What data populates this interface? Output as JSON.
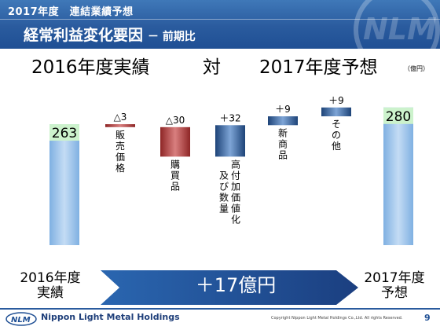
{
  "header": {
    "topline": "2017年度　連結業績予想",
    "title": "経常利益変化要因",
    "subtitle": "－ 前期比"
  },
  "comparison": {
    "left": "2016年度実績",
    "middle": "対",
    "right": "2017年度予想"
  },
  "unit": "（億円）",
  "chart_data": {
    "type": "bar",
    "subtype": "waterfall",
    "categories": [
      "2016年度実績",
      "販売価格",
      "購買品",
      "高付加価値化及び数量",
      "新商品",
      "その他",
      "2017年度予想"
    ],
    "value_labels": [
      "263",
      "△3",
      "△30",
      "＋32",
      "＋9",
      "＋9",
      "280"
    ],
    "start_value": 263,
    "end_value": 280,
    "deltas": [
      -3,
      -30,
      32,
      9,
      9
    ],
    "cumulative": [
      263,
      260,
      230,
      262,
      271,
      280,
      280
    ],
    "ylim": [
      140,
      295
    ],
    "unit": "億円",
    "grid": false,
    "legend": "none",
    "colors": {
      "total": "#9ec3e8",
      "decrease": "#b13a3a",
      "increase": "#2e5fa0",
      "total_label_bg": "#ccf2cc"
    },
    "category_labels": [
      {
        "lines": [
          "販",
          "売",
          "価",
          "格"
        ]
      },
      {
        "lines": [
          "購",
          "買",
          "品"
        ]
      },
      {
        "lines": [
          "高",
          "付",
          "加",
          "価",
          "値",
          "化"
        ],
        "lines2": [
          "及",
          "び",
          "数",
          "量"
        ]
      },
      {
        "lines": [
          "新",
          "商",
          "品"
        ]
      },
      {
        "lines": [
          "そ",
          "の",
          "他"
        ]
      }
    ]
  },
  "bottom": {
    "start_line1": "2016年度",
    "start_line2": "実績",
    "arrow_text": "＋17億円",
    "end_line1": "2017年度",
    "end_line2": "予想"
  },
  "footer": {
    "company": "Nippon Light Metal Holdings",
    "copyright": "Copyright Nippon Light Metal Holdings Co.,Ltd. All rights Reserved.",
    "page": "9",
    "logo_text": "NLM"
  }
}
